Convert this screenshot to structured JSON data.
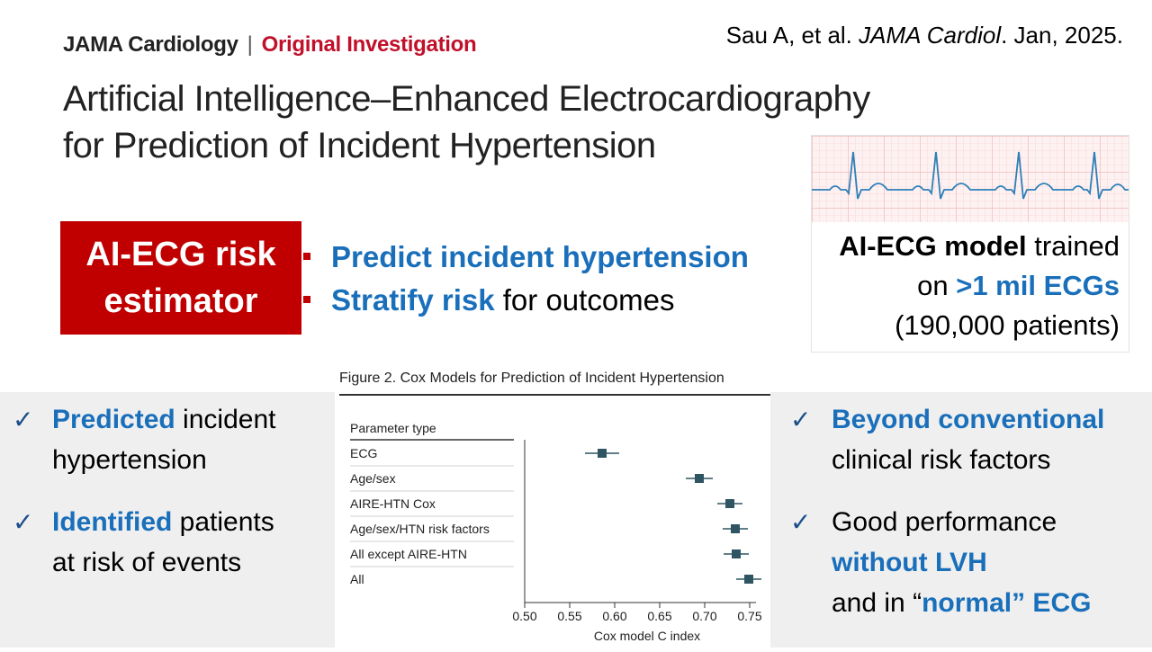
{
  "header": {
    "journal": "JAMA Cardiology",
    "separator": "|",
    "article_type": "Original Investigation",
    "citation_prefix": "Sau A, et al. ",
    "citation_journal": "JAMA Cardiol",
    "citation_suffix": ". Jan, 2025."
  },
  "title": {
    "line1": "Artificial Intelligence–Enhanced Electrocardiography",
    "line2": "for Prediction of Incident Hypertension"
  },
  "estimator_box": {
    "line1": "AI-ECG risk",
    "line2": "estimator"
  },
  "mid_bullets": [
    {
      "bold": "Predict incident hypertension",
      "rest": ""
    },
    {
      "bold": "Stratify risk",
      "rest": " for outcomes"
    }
  ],
  "ecg_card": {
    "line1_bold": "AI-ECG model",
    "line1_rest": " trained",
    "line2_pre": "on ",
    "line2_bold": ">1 mil ECGs",
    "line3": "(190,000 patients)"
  },
  "left_checks": [
    {
      "bold": "Predicted",
      "rest": " incident",
      "line2": "hypertension"
    },
    {
      "bold": "Identified",
      "rest": " patients",
      "line2": "at risk of events"
    }
  ],
  "right_checks": [
    {
      "bold": "Beyond conventional",
      "line2": "clinical risk factors"
    },
    {
      "pre": "Good performance",
      "bold": "without LVH",
      "line3_pre": "and in “",
      "line3_bold": "normal” ECG"
    }
  ],
  "check_glyph": "✓",
  "colors": {
    "accent_red": "#c00000",
    "accent_blue": "#1a6fba",
    "band_grey": "#efefef",
    "marker": "#2f5563"
  },
  "chart_data": {
    "type": "forest",
    "title": "Figure 2. Cox Models for Prediction of Incident Hypertension",
    "column_header": "Parameter type",
    "xlabel": "Cox model C index",
    "xlim": [
      0.5,
      0.76
    ],
    "xticks": [
      "0.50",
      "0.55",
      "0.60",
      "0.65",
      "0.70",
      "0.75"
    ],
    "rows": [
      {
        "label": "ECG",
        "estimate": 0.586,
        "lower": 0.567,
        "upper": 0.605
      },
      {
        "label": "Age/sex",
        "estimate": 0.694,
        "lower": 0.679,
        "upper": 0.709
      },
      {
        "label": "AIRE-HTN Cox",
        "estimate": 0.728,
        "lower": 0.714,
        "upper": 0.742
      },
      {
        "label": "Age/sex/HTN risk factors",
        "estimate": 0.734,
        "lower": 0.72,
        "upper": 0.748
      },
      {
        "label": "All except AIRE-HTN",
        "estimate": 0.735,
        "lower": 0.721,
        "upper": 0.749
      },
      {
        "label": "All",
        "estimate": 0.749,
        "lower": 0.735,
        "upper": 0.763
      }
    ]
  }
}
